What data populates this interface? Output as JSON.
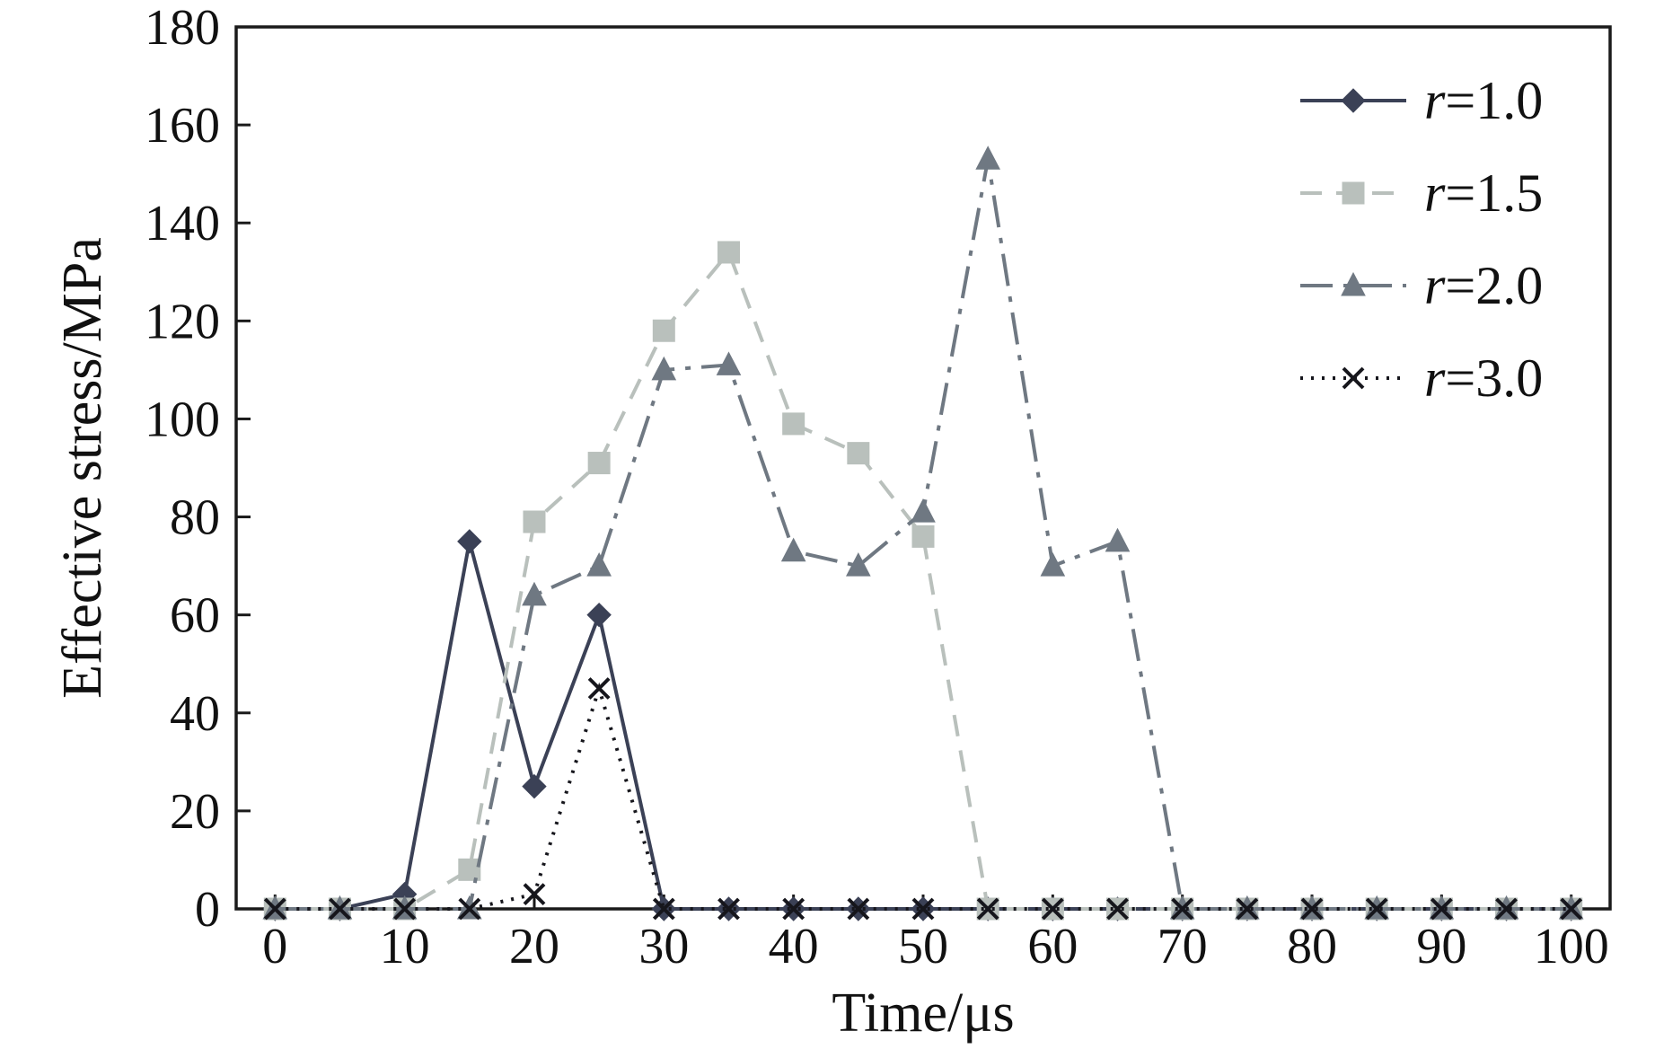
{
  "chart_data": {
    "type": "line",
    "title": "",
    "xlabel": "Time/μs",
    "ylabel": "Effective stress/MPa",
    "xlim": [
      0,
      100
    ],
    "ylim": [
      0,
      180
    ],
    "xticks": [
      0,
      10,
      20,
      30,
      40,
      50,
      60,
      70,
      80,
      90,
      100
    ],
    "yticks": [
      0,
      20,
      40,
      60,
      80,
      100,
      120,
      140,
      160,
      180
    ],
    "grid": false,
    "legend_position": "top-right-inside",
    "axis_color": "#1a1a1a",
    "x": [
      0,
      5,
      10,
      15,
      20,
      25,
      30,
      35,
      40,
      45,
      50,
      55,
      60,
      65,
      70,
      75,
      80,
      85,
      90,
      95,
      100
    ],
    "series": [
      {
        "name": "r=1.0",
        "marker": "diamond",
        "line": "solid",
        "color": "#3b4156",
        "values": [
          0,
          0,
          3,
          75,
          25,
          60,
          0,
          0,
          0,
          0,
          0,
          0,
          0,
          0,
          0,
          0,
          0,
          0,
          0,
          0,
          0
        ]
      },
      {
        "name": "r=1.5",
        "marker": "square",
        "line": "dashed",
        "color": "#b9c0bc",
        "values": [
          0,
          0,
          0,
          8,
          79,
          91,
          118,
          134,
          99,
          93,
          76,
          0,
          0,
          0,
          0,
          0,
          0,
          0,
          0,
          0,
          0
        ]
      },
      {
        "name": "r=2.0",
        "marker": "triangle",
        "line": "dashdot",
        "color": "#6f7882",
        "values": [
          0,
          0,
          0,
          0,
          64,
          70,
          110,
          111,
          73,
          70,
          81,
          153,
          70,
          75,
          0,
          0,
          0,
          0,
          0,
          0,
          0
        ]
      },
      {
        "name": "r=3.0",
        "marker": "x",
        "line": "dotted",
        "color": "#16161c",
        "values": [
          0,
          0,
          0,
          0,
          3,
          45,
          0,
          0,
          0,
          0,
          0,
          0,
          0,
          0,
          0,
          0,
          0,
          0,
          0,
          0,
          0
        ]
      }
    ]
  }
}
